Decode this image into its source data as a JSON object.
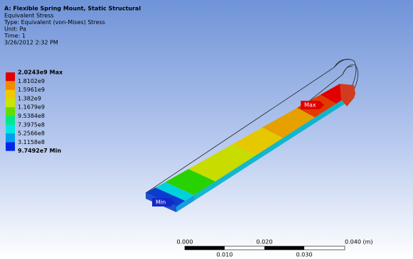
{
  "header": {
    "title": "A: Flexible Spring Mount, Static Structural",
    "lines": [
      "Equivalent Stress",
      "Type: Equivalent (von-Mises) Stress",
      "Unit: Pa",
      "Time: 1",
      "3/26/2012 2:32 PM"
    ]
  },
  "legend": {
    "labels": [
      "2.0243e9 Max",
      "1.8102e9",
      "1.5961e9",
      "1.382e9",
      "1.1679e9",
      "9.5384e8",
      "7.3975e8",
      "5.2566e8",
      "3.1158e8",
      "9.7492e7 Min"
    ]
  },
  "probes": {
    "max": "Max",
    "min": "Min"
  },
  "scale_bar": {
    "top_labels": [
      "0.000",
      "0.020",
      "0.040 (m)"
    ],
    "bottom_labels": [
      "0.010",
      "0.030"
    ]
  }
}
